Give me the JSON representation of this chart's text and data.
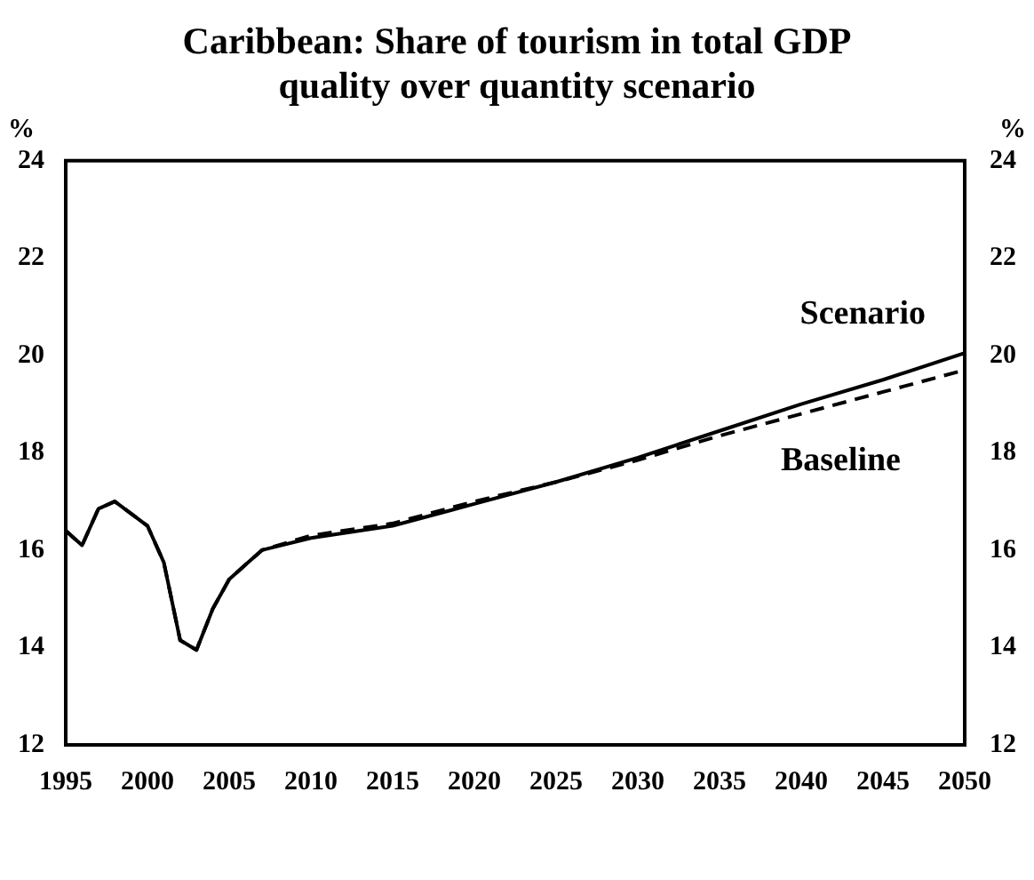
{
  "chart_data": {
    "type": "line",
    "title": [
      "Caribbean: Share of tourism in total GDP",
      "quality over quantity scenario"
    ],
    "ylabel": "%",
    "y2label": "%",
    "x": [
      1995,
      1996,
      1997,
      1998,
      1999,
      2000,
      2001,
      2002,
      2003,
      2004,
      2005,
      2006,
      2007,
      2010,
      2015,
      2020,
      2025,
      2030,
      2035,
      2040,
      2045,
      2050
    ],
    "series": [
      {
        "name": "Scenario",
        "color": "#000000",
        "line_style": "solid",
        "values": [
          16.4,
          16.1,
          16.85,
          17.0,
          16.75,
          16.5,
          15.75,
          14.15,
          13.95,
          14.8,
          15.4,
          15.7,
          16.0,
          16.25,
          16.5,
          16.95,
          17.4,
          17.9,
          18.45,
          19.0,
          19.5,
          20.05
        ]
      },
      {
        "name": "Baseline",
        "color": "#000000",
        "line_style": "dashed",
        "values": [
          16.4,
          16.1,
          16.85,
          17.0,
          16.75,
          16.5,
          15.75,
          14.15,
          13.95,
          14.8,
          15.4,
          15.7,
          16.0,
          16.3,
          16.55,
          17.0,
          17.4,
          17.85,
          18.35,
          18.8,
          19.25,
          19.7
        ]
      }
    ],
    "xlim": [
      1995,
      2050
    ],
    "xticks": [
      1995,
      2000,
      2005,
      2010,
      2015,
      2020,
      2025,
      2030,
      2035,
      2040,
      2045,
      2050
    ],
    "ylim": [
      12,
      24
    ],
    "yticks": [
      12,
      14,
      16,
      18,
      20,
      22,
      24
    ],
    "y2lim": [
      12,
      24
    ],
    "y2ticks": [
      12,
      14,
      16,
      18,
      20,
      22,
      24
    ],
    "grid": false,
    "legend": false,
    "marker": "none"
  }
}
